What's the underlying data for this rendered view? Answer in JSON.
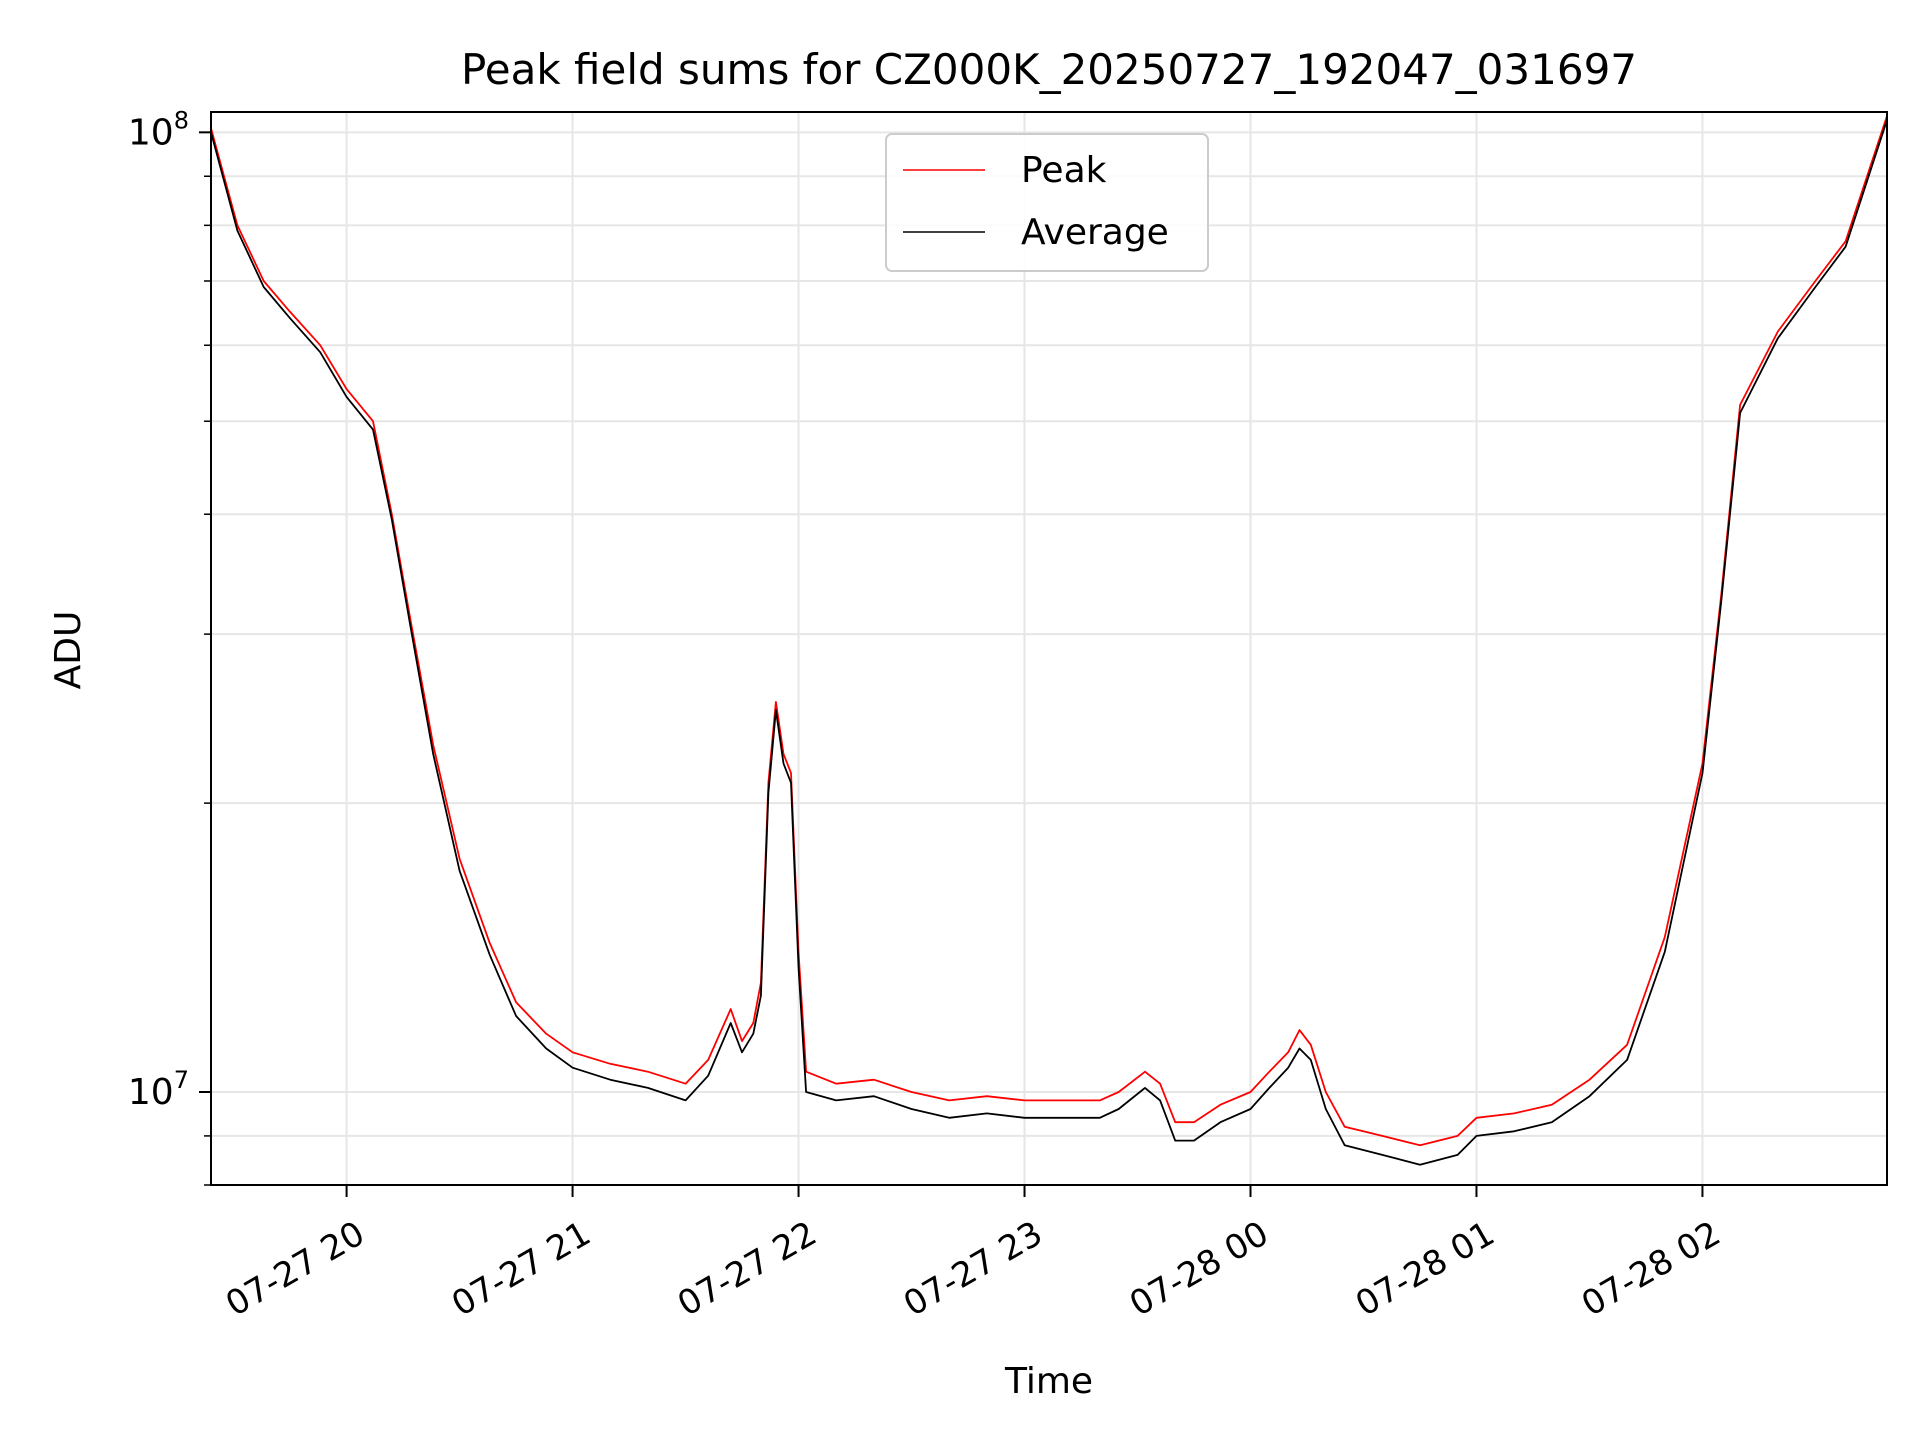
{
  "chart_data": {
    "type": "line",
    "title": "Peak field sums for CZ000K_20250727_192047_031697",
    "xlabel": "Time",
    "ylabel": "ADU",
    "yscale": "log",
    "ylim": [
      8000000,
      105000000
    ],
    "x_range": [
      "2025-07-27 19:24",
      "2025-07-28 02:49"
    ],
    "x_ticks": [
      {
        "value": "2025-07-27 20:00",
        "label": "07-27 20"
      },
      {
        "value": "2025-07-27 21:00",
        "label": "07-27 21"
      },
      {
        "value": "2025-07-27 22:00",
        "label": "07-27 22"
      },
      {
        "value": "2025-07-27 23:00",
        "label": "07-27 23"
      },
      {
        "value": "2025-07-28 00:00",
        "label": "07-28 00"
      },
      {
        "value": "2025-07-28 01:00",
        "label": "07-28 01"
      },
      {
        "value": "2025-07-28 02:00",
        "label": "07-28 02"
      }
    ],
    "y_ticks": [
      {
        "value": 10000000,
        "base": "10",
        "exp": "7"
      },
      {
        "value": 100000000,
        "base": "10",
        "exp": "8"
      }
    ],
    "grid": true,
    "legend_position": "top-center",
    "series": [
      {
        "name": "Peak",
        "color": "#ff0000",
        "points": [
          [
            "2025-07-27 19:24",
            101000000
          ],
          [
            "2025-07-27 19:31",
            80000000
          ],
          [
            "2025-07-27 19:38",
            70000000
          ],
          [
            "2025-07-27 19:45",
            65000000
          ],
          [
            "2025-07-27 19:53",
            60000000
          ],
          [
            "2025-07-27 20:00",
            54000000
          ],
          [
            "2025-07-27 20:07",
            50000000
          ],
          [
            "2025-07-27 20:12",
            40000000
          ],
          [
            "2025-07-27 20:17",
            31000000
          ],
          [
            "2025-07-27 20:23",
            23000000
          ],
          [
            "2025-07-27 20:30",
            17500000
          ],
          [
            "2025-07-27 20:38",
            14300000
          ],
          [
            "2025-07-27 20:45",
            12400000
          ],
          [
            "2025-07-27 20:53",
            11500000
          ],
          [
            "2025-07-27 21:00",
            11000000
          ],
          [
            "2025-07-27 21:10",
            10700000
          ],
          [
            "2025-07-27 21:20",
            10500000
          ],
          [
            "2025-07-27 21:30",
            10200000
          ],
          [
            "2025-07-27 21:36",
            10800000
          ],
          [
            "2025-07-27 21:42",
            12200000
          ],
          [
            "2025-07-27 21:45",
            11300000
          ],
          [
            "2025-07-27 21:48",
            11800000
          ],
          [
            "2025-07-27 21:50",
            13000000
          ],
          [
            "2025-07-27 21:52",
            21000000
          ],
          [
            "2025-07-27 21:54",
            25500000
          ],
          [
            "2025-07-27 21:56",
            22500000
          ],
          [
            "2025-07-27 21:58",
            21500000
          ],
          [
            "2025-07-27 22:00",
            14000000
          ],
          [
            "2025-07-27 22:02",
            10500000
          ],
          [
            "2025-07-27 22:10",
            10200000
          ],
          [
            "2025-07-27 22:20",
            10300000
          ],
          [
            "2025-07-27 22:30",
            10000000
          ],
          [
            "2025-07-27 22:40",
            9800000
          ],
          [
            "2025-07-27 22:50",
            9900000
          ],
          [
            "2025-07-27 23:00",
            9800000
          ],
          [
            "2025-07-27 23:10",
            9800000
          ],
          [
            "2025-07-27 23:20",
            9800000
          ],
          [
            "2025-07-27 23:25",
            10000000
          ],
          [
            "2025-07-27 23:32",
            10500000
          ],
          [
            "2025-07-27 23:36",
            10200000
          ],
          [
            "2025-07-27 23:40",
            9300000
          ],
          [
            "2025-07-27 23:45",
            9300000
          ],
          [
            "2025-07-27 23:52",
            9700000
          ],
          [
            "2025-07-28 00:00",
            10000000
          ],
          [
            "2025-07-28 00:05",
            10500000
          ],
          [
            "2025-07-28 00:10",
            11000000
          ],
          [
            "2025-07-28 00:13",
            11600000
          ],
          [
            "2025-07-28 00:16",
            11200000
          ],
          [
            "2025-07-28 00:20",
            10000000
          ],
          [
            "2025-07-28 00:25",
            9200000
          ],
          [
            "2025-07-28 00:35",
            9000000
          ],
          [
            "2025-07-28 00:45",
            8800000
          ],
          [
            "2025-07-28 00:55",
            9000000
          ],
          [
            "2025-07-28 01:00",
            9400000
          ],
          [
            "2025-07-28 01:10",
            9500000
          ],
          [
            "2025-07-28 01:20",
            9700000
          ],
          [
            "2025-07-28 01:30",
            10300000
          ],
          [
            "2025-07-28 01:40",
            11200000
          ],
          [
            "2025-07-28 01:50",
            14500000
          ],
          [
            "2025-07-28 02:00",
            22000000
          ],
          [
            "2025-07-28 02:05",
            33000000
          ],
          [
            "2025-07-28 02:10",
            52000000
          ],
          [
            "2025-07-28 02:20",
            62000000
          ],
          [
            "2025-07-28 02:30",
            70000000
          ],
          [
            "2025-07-28 02:38",
            77000000
          ],
          [
            "2025-07-28 02:49",
            104000000
          ]
        ]
      },
      {
        "name": "Average",
        "color": "#000000",
        "points": [
          [
            "2025-07-27 19:24",
            100000000
          ],
          [
            "2025-07-27 19:31",
            79000000
          ],
          [
            "2025-07-27 19:38",
            69000000
          ],
          [
            "2025-07-27 19:45",
            64000000
          ],
          [
            "2025-07-27 19:53",
            59000000
          ],
          [
            "2025-07-27 20:00",
            53000000
          ],
          [
            "2025-07-27 20:07",
            49000000
          ],
          [
            "2025-07-27 20:12",
            39500000
          ],
          [
            "2025-07-27 20:17",
            30500000
          ],
          [
            "2025-07-27 20:23",
            22500000
          ],
          [
            "2025-07-27 20:30",
            17000000
          ],
          [
            "2025-07-27 20:38",
            13900000
          ],
          [
            "2025-07-27 20:45",
            12000000
          ],
          [
            "2025-07-27 20:53",
            11100000
          ],
          [
            "2025-07-27 21:00",
            10600000
          ],
          [
            "2025-07-27 21:10",
            10300000
          ],
          [
            "2025-07-27 21:20",
            10100000
          ],
          [
            "2025-07-27 21:30",
            9800000
          ],
          [
            "2025-07-27 21:36",
            10400000
          ],
          [
            "2025-07-27 21:42",
            11800000
          ],
          [
            "2025-07-27 21:45",
            11000000
          ],
          [
            "2025-07-27 21:48",
            11500000
          ],
          [
            "2025-07-27 21:50",
            12600000
          ],
          [
            "2025-07-27 21:52",
            20500000
          ],
          [
            "2025-07-27 21:54",
            25000000
          ],
          [
            "2025-07-27 21:56",
            22000000
          ],
          [
            "2025-07-27 21:58",
            21000000
          ],
          [
            "2025-07-27 22:00",
            13500000
          ],
          [
            "2025-07-27 22:02",
            10000000
          ],
          [
            "2025-07-27 22:10",
            9800000
          ],
          [
            "2025-07-27 22:20",
            9900000
          ],
          [
            "2025-07-27 22:30",
            9600000
          ],
          [
            "2025-07-27 22:40",
            9400000
          ],
          [
            "2025-07-27 22:50",
            9500000
          ],
          [
            "2025-07-27 23:00",
            9400000
          ],
          [
            "2025-07-27 23:10",
            9400000
          ],
          [
            "2025-07-27 23:20",
            9400000
          ],
          [
            "2025-07-27 23:25",
            9600000
          ],
          [
            "2025-07-27 23:32",
            10100000
          ],
          [
            "2025-07-27 23:36",
            9800000
          ],
          [
            "2025-07-27 23:40",
            8900000
          ],
          [
            "2025-07-27 23:45",
            8900000
          ],
          [
            "2025-07-27 23:52",
            9300000
          ],
          [
            "2025-07-28 00:00",
            9600000
          ],
          [
            "2025-07-28 00:05",
            10100000
          ],
          [
            "2025-07-28 00:10",
            10600000
          ],
          [
            "2025-07-28 00:13",
            11100000
          ],
          [
            "2025-07-28 00:16",
            10800000
          ],
          [
            "2025-07-28 00:20",
            9600000
          ],
          [
            "2025-07-28 00:25",
            8800000
          ],
          [
            "2025-07-28 00:35",
            8600000
          ],
          [
            "2025-07-28 00:45",
            8400000
          ],
          [
            "2025-07-28 00:55",
            8600000
          ],
          [
            "2025-07-28 01:00",
            9000000
          ],
          [
            "2025-07-28 01:10",
            9100000
          ],
          [
            "2025-07-28 01:20",
            9300000
          ],
          [
            "2025-07-28 01:30",
            9900000
          ],
          [
            "2025-07-28 01:40",
            10800000
          ],
          [
            "2025-07-28 01:50",
            14000000
          ],
          [
            "2025-07-28 02:00",
            21500000
          ],
          [
            "2025-07-28 02:05",
            32500000
          ],
          [
            "2025-07-28 02:10",
            51000000
          ],
          [
            "2025-07-28 02:20",
            61000000
          ],
          [
            "2025-07-28 02:30",
            69000000
          ],
          [
            "2025-07-28 02:38",
            76000000
          ],
          [
            "2025-07-28 02:49",
            103000000
          ]
        ]
      }
    ]
  }
}
